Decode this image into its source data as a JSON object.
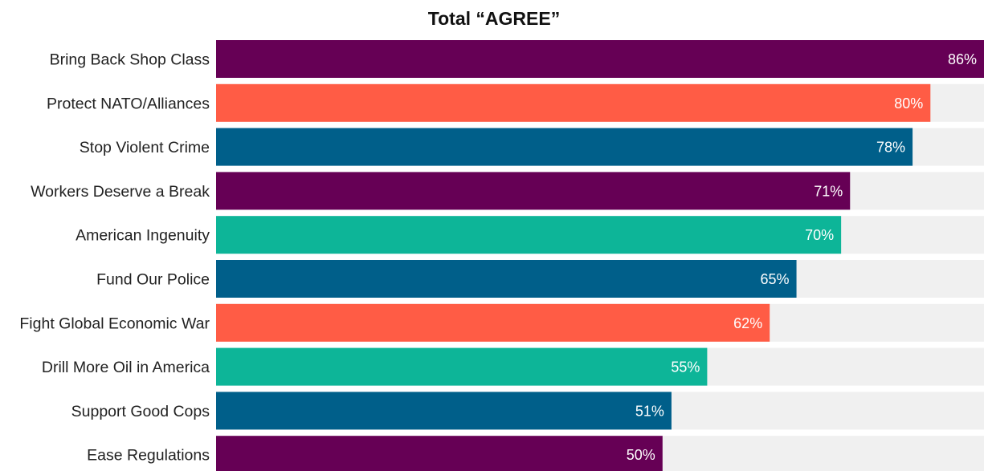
{
  "chart_data": {
    "type": "bar",
    "orientation": "horizontal",
    "title": "Total “AGREE”",
    "xlabel": "",
    "ylabel": "",
    "xlim": [
      0,
      86
    ],
    "grid": false,
    "legend": "none",
    "categories": [
      "Bring Back Shop Class",
      "Protect NATO/Alliances",
      "Stop Violent Crime",
      "Workers Deserve a Break",
      "American Ingenuity",
      "Fund Our Police",
      "Fight Global Economic War",
      "Drill More Oil in America",
      "Support Good Cops",
      "Ease Regulations"
    ],
    "values": [
      86,
      80,
      78,
      71,
      70,
      65,
      62,
      55,
      51,
      50
    ],
    "value_labels": [
      "86%",
      "80%",
      "78%",
      "71%",
      "70%",
      "65%",
      "62%",
      "55%",
      "51%",
      "50%"
    ],
    "colors": [
      "#660055",
      "#ff5c45",
      "#005f8a",
      "#660055",
      "#0db598",
      "#005f8a",
      "#ff5c45",
      "#0db598",
      "#005f8a",
      "#660055"
    ],
    "track_color": "#f0f0f0"
  }
}
